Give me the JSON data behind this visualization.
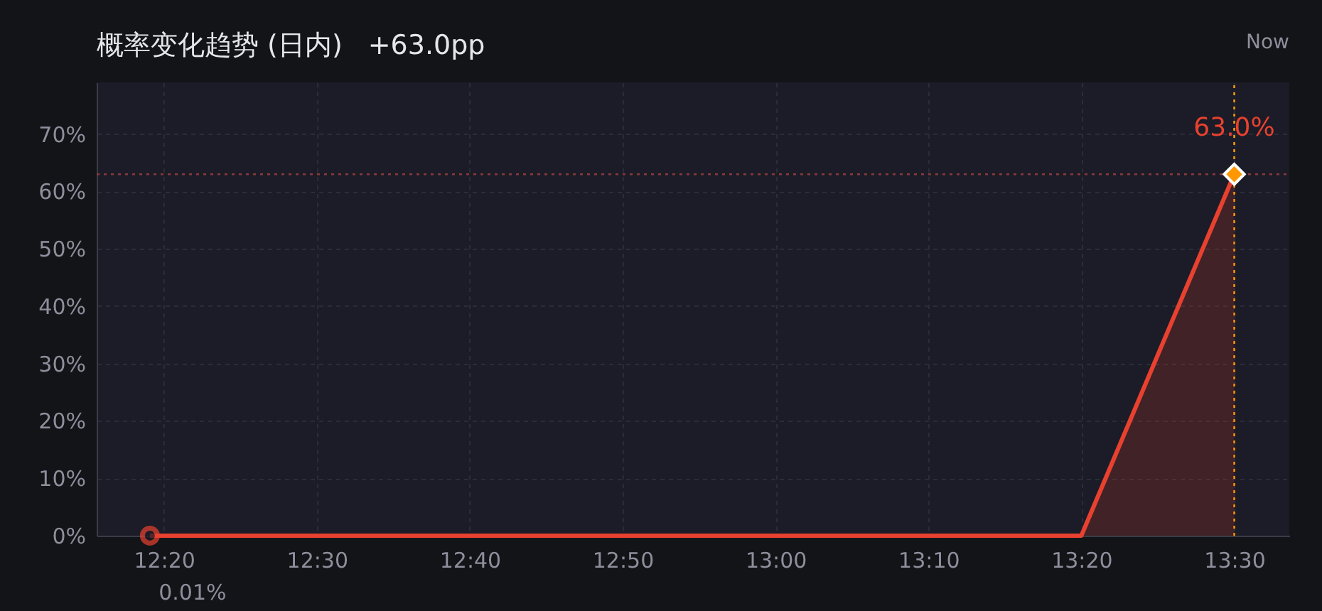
{
  "chart_data": {
    "type": "area",
    "title": "概率变化趋势 (日内)",
    "subtitle": "+63.0pp",
    "series": [
      {
        "color": "#e8412f",
        "x": [
          12.318,
          13.3333,
          13.5
        ],
        "values": [
          0.01,
          0,
          63.0
        ]
      },
      {
        "type": "scatter",
        "color": "#e8412f",
        "marker": "circle",
        "x": [
          12.318
        ],
        "values": [
          0.01
        ]
      },
      {
        "type": "scatter",
        "color": "#ff9800",
        "marker": "diamond",
        "x": [
          13.5
        ],
        "values": [
          63.0
        ]
      }
    ],
    "annotations": [
      {
        "text": "0.01%",
        "x": 12.318,
        "y": 0.01
      },
      {
        "text": "63.0%",
        "x": 13.5,
        "y": 63.0
      },
      "Now"
    ],
    "ref_lines": [
      {
        "axis": "x",
        "value": 13.5,
        "color": "#ff9800",
        "line_style": "dotted"
      },
      {
        "axis": "y",
        "value": 63.0,
        "color": "#8a3a3a",
        "line_style": "dotted"
      }
    ],
    "xlim": [
      12.26,
      13.56
    ],
    "xticks": [
      {
        "value": 12.3333,
        "label": "12:20"
      },
      {
        "value": 12.5,
        "label": "12:30"
      },
      {
        "value": 12.6667,
        "label": "12:40"
      },
      {
        "value": 12.8333,
        "label": "12:50"
      },
      {
        "value": 13.0,
        "label": "13:00"
      },
      {
        "value": 13.1667,
        "label": "13:10"
      },
      {
        "value": 13.3333,
        "label": "13:20"
      },
      {
        "value": 13.5,
        "label": "13:30"
      }
    ],
    "ylim": [
      0,
      79
    ],
    "yticks": [
      {
        "value": 0,
        "label": "0%"
      },
      {
        "value": 10,
        "label": "10%"
      },
      {
        "value": 20,
        "label": "20%"
      },
      {
        "value": 30,
        "label": "30%"
      },
      {
        "value": 40,
        "label": "40%"
      },
      {
        "value": 50,
        "label": "50%"
      },
      {
        "value": 60,
        "label": "60%"
      },
      {
        "value": 70,
        "label": "70%"
      }
    ],
    "grid": true
  }
}
